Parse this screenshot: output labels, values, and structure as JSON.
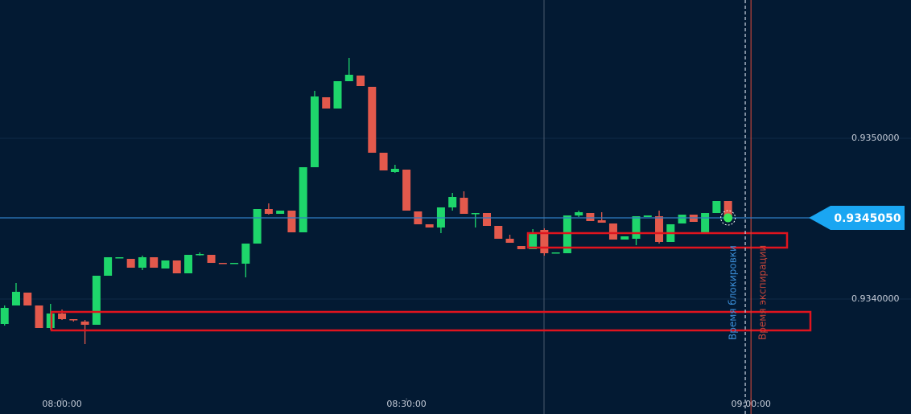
{
  "chart_data": {
    "type": "candlestick",
    "x": [
      "07:55:00",
      "07:56:00",
      "07:57:00",
      "07:58:00",
      "07:59:00",
      "08:00:00",
      "08:01:00",
      "08:02:00",
      "08:03:00",
      "08:04:00",
      "08:05:00",
      "08:06:00",
      "08:07:00",
      "08:08:00",
      "08:09:00",
      "08:10:00",
      "08:11:00",
      "08:12:00",
      "08:13:00",
      "08:14:00",
      "08:15:00",
      "08:16:00",
      "08:17:00",
      "08:18:00",
      "08:19:00",
      "08:20:00",
      "08:21:00",
      "08:22:00",
      "08:23:00",
      "08:24:00",
      "08:25:00",
      "08:26:00",
      "08:27:00",
      "08:28:00",
      "08:29:00",
      "08:30:00",
      "08:31:00",
      "08:32:00",
      "08:33:00",
      "08:34:00",
      "08:35:00",
      "08:36:00",
      "08:37:00",
      "08:38:00",
      "08:39:00",
      "08:40:00",
      "08:41:00",
      "08:42:00",
      "08:43:00",
      "08:44:00",
      "08:45:00",
      "08:46:00",
      "08:47:00",
      "08:48:00",
      "08:49:00",
      "08:50:00",
      "08:51:00",
      "08:52:00",
      "08:53:00",
      "08:54:00",
      "08:55:00",
      "08:56:00",
      "08:57:00",
      "08:58:00"
    ],
    "open": [
      0.933845,
      0.93396,
      0.93404,
      0.93396,
      0.93382,
      0.93391,
      0.933875,
      0.93386,
      0.93384,
      0.934145,
      0.934255,
      0.93425,
      0.934195,
      0.93426,
      0.93419,
      0.93424,
      0.93416,
      0.934275,
      0.934275,
      0.934225,
      0.93422,
      0.93422,
      0.934345,
      0.93456,
      0.93453,
      0.93455,
      0.934415,
      0.93482,
      0.935255,
      0.935185,
      0.935355,
      0.93539,
      0.93532,
      0.93491,
      0.93479,
      0.934805,
      0.934545,
      0.934465,
      0.934445,
      0.93457,
      0.93463,
      0.93453,
      0.934535,
      0.934455,
      0.934375,
      0.93433,
      0.93431,
      0.93443,
      0.934285,
      0.934285,
      0.93452,
      0.934535,
      0.93449,
      0.93447,
      0.93437,
      0.934375,
      0.93451,
      0.934515,
      0.934355,
      0.93447,
      0.934525,
      0.934415,
      0.934535,
      0.93461
    ],
    "high": [
      0.93396,
      0.9341,
      0.93404,
      0.93396,
      0.93397,
      0.933935,
      0.933875,
      0.93387,
      0.934145,
      0.93426,
      0.93426,
      0.93425,
      0.93427,
      0.93426,
      0.93424,
      0.93424,
      0.934275,
      0.93429,
      0.934275,
      0.934225,
      0.934225,
      0.934345,
      0.93456,
      0.934595,
      0.93455,
      0.93455,
      0.93482,
      0.935295,
      0.935255,
      0.935355,
      0.9355,
      0.93539,
      0.93532,
      0.93491,
      0.934835,
      0.934805,
      0.934545,
      0.934465,
      0.93457,
      0.93466,
      0.93467,
      0.934535,
      0.934535,
      0.934455,
      0.9344,
      0.93433,
      0.934435,
      0.93444,
      0.93429,
      0.93452,
      0.93455,
      0.934535,
      0.93454,
      0.93447,
      0.93439,
      0.934515,
      0.93452,
      0.93455,
      0.934465,
      0.934525,
      0.934525,
      0.934535,
      0.93461,
      0.93461
    ],
    "low": [
      0.933835,
      0.93396,
      0.93396,
      0.93382,
      0.93381,
      0.93387,
      0.93386,
      0.93372,
      0.93384,
      0.934145,
      0.934255,
      0.934195,
      0.93418,
      0.934195,
      0.93419,
      0.93416,
      0.93416,
      0.93427,
      0.934225,
      0.93422,
      0.93422,
      0.934135,
      0.934345,
      0.934525,
      0.93453,
      0.934415,
      0.934415,
      0.93482,
      0.935185,
      0.935185,
      0.935355,
      0.935325,
      0.93491,
      0.9348,
      0.934785,
      0.93455,
      0.934465,
      0.934445,
      0.93441,
      0.93455,
      0.93453,
      0.934445,
      0.934455,
      0.934375,
      0.93435,
      0.93431,
      0.93431,
      0.93427,
      0.934285,
      0.934285,
      0.93451,
      0.934485,
      0.934475,
      0.93437,
      0.93437,
      0.934335,
      0.93451,
      0.934345,
      0.934355,
      0.93447,
      0.93448,
      0.934415,
      0.934535,
      0.934505
    ],
    "close": [
      0.933945,
      0.934045,
      0.93396,
      0.93382,
      0.93391,
      0.933875,
      0.93387,
      0.93384,
      0.934145,
      0.93426,
      0.93426,
      0.934195,
      0.93426,
      0.934195,
      0.93424,
      0.93416,
      0.934275,
      0.93428,
      0.934225,
      0.93422,
      0.934225,
      0.934345,
      0.93456,
      0.93453,
      0.93455,
      0.934415,
      0.93482,
      0.93526,
      0.935185,
      0.935355,
      0.935395,
      0.935325,
      0.93491,
      0.9348,
      0.93481,
      0.93455,
      0.934465,
      0.934445,
      0.93457,
      0.934635,
      0.93453,
      0.934535,
      0.934455,
      0.934375,
      0.93435,
      0.93431,
      0.93441,
      0.934285,
      0.93429,
      0.93452,
      0.93454,
      0.934485,
      0.934475,
      0.93437,
      0.93439,
      0.934515,
      0.93452,
      0.934355,
      0.934465,
      0.934525,
      0.93448,
      0.934535,
      0.93461,
      0.934505
    ],
    "up_color": "#1ed66b",
    "down_color": "#e3594c",
    "xlim": [
      "07:54:36",
      "09:13:56"
    ],
    "xticks": [
      "08:00:00",
      "08:30:00",
      "09:00:00"
    ],
    "ylim": [
      0.933285,
      0.93586
    ],
    "yticks": [
      {
        "value": 0.934,
        "label": "0.9340000"
      },
      {
        "value": 0.935,
        "label": "0.9350000"
      }
    ],
    "grid": true,
    "current_price": {
      "value": 0.934505,
      "label": "0.9345050"
    },
    "markers": [
      {
        "label": "Время блокировки",
        "x": "08:59:30",
        "color": "#3b8fd9"
      },
      {
        "label": "Время экспирации",
        "x": "09:00:00",
        "color": "#c0443a"
      }
    ]
  }
}
